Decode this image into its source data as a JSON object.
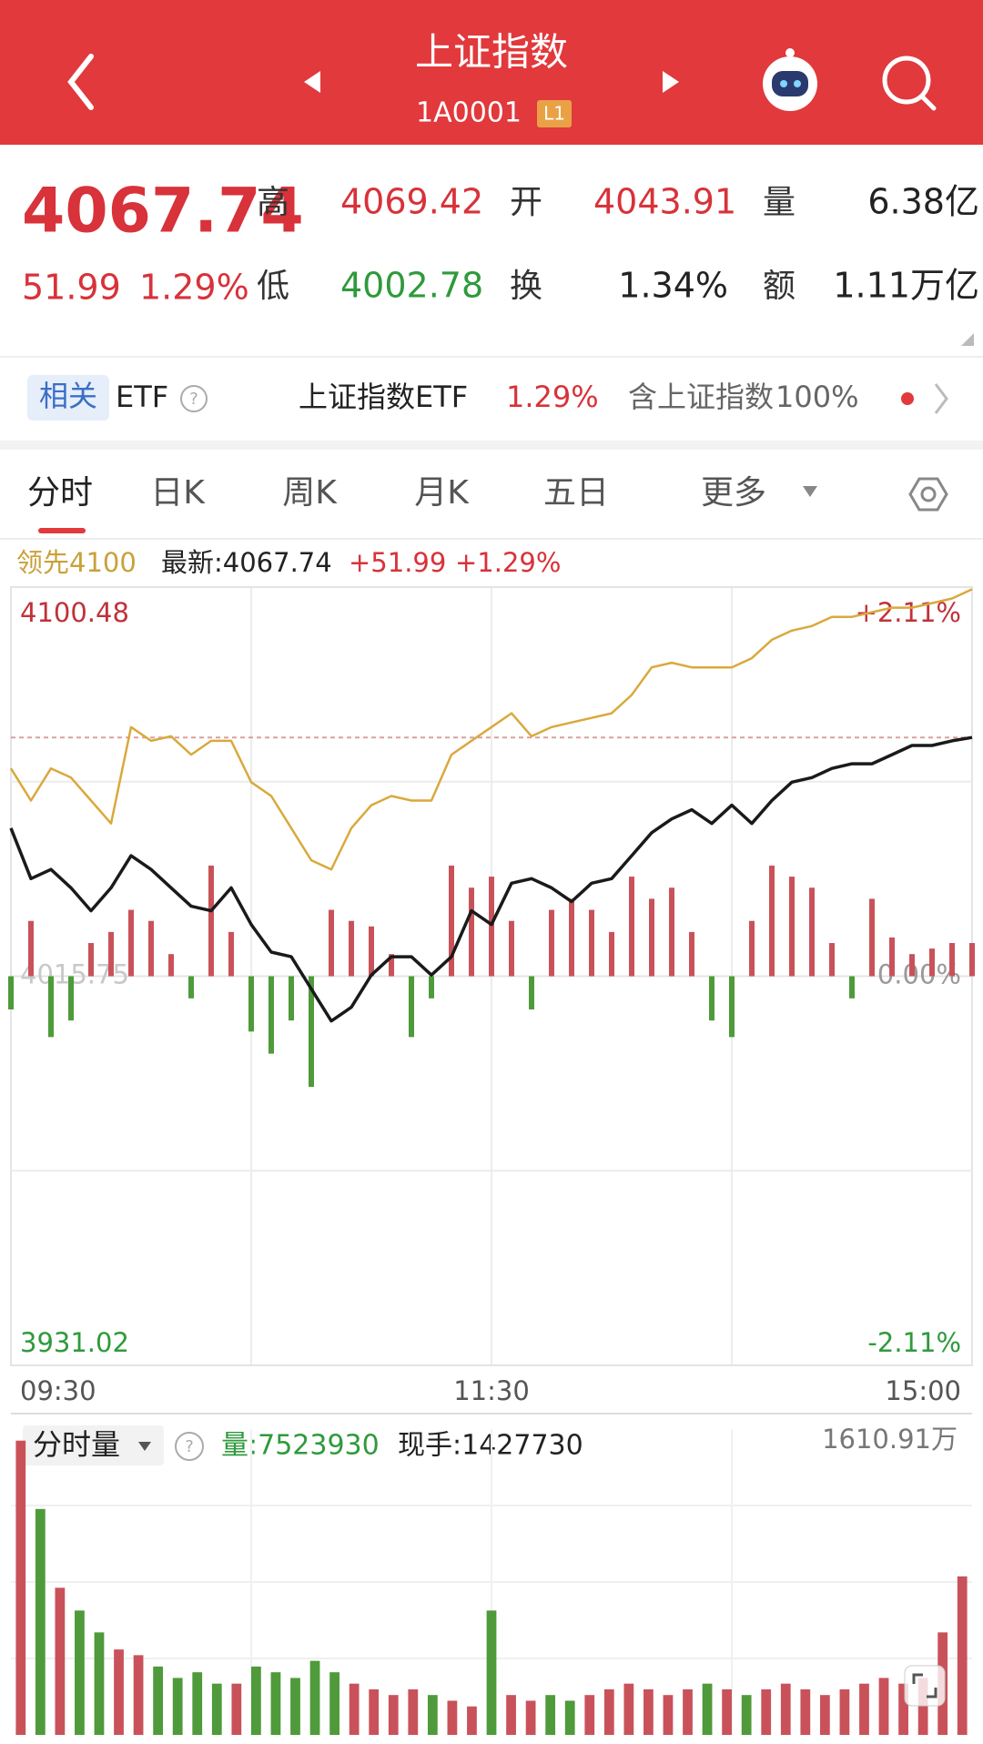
{
  "header": {
    "title": "上证指数",
    "code": "1A0001",
    "badge": "L1"
  },
  "quote": {
    "price": "4067.74",
    "change": "51.99",
    "pct": "1.29%",
    "high_label": "高",
    "high": "4069.42",
    "open_label": "开",
    "open": "4043.91",
    "vol_label": "量",
    "vol": "6.38亿",
    "low_label": "低",
    "low": "4002.78",
    "turnover_label": "换",
    "turnover": "1.34%",
    "amount_label": "额",
    "amount": "1.11万亿"
  },
  "etf": {
    "tag": "相关",
    "etf": "ETF",
    "name": "上证指数ETF",
    "pct": "1.29%",
    "holds_label": "含上证指数",
    "holds": "100%"
  },
  "tabs": [
    "分时",
    "日K",
    "周K",
    "月K",
    "五日",
    "更多"
  ],
  "chart_data": [
    {
      "type": "line",
      "legend_change": "+51.99",
      "legend_pct": "+1.29%",
      "x": [
        0,
        5,
        10,
        15,
        20,
        25,
        30,
        35,
        40,
        45,
        50,
        55,
        60,
        65,
        70,
        75,
        80,
        85,
        90,
        95,
        100,
        105,
        110,
        115,
        120,
        125,
        130,
        135,
        140,
        145,
        150,
        155,
        160,
        165,
        170,
        175,
        180,
        185,
        190,
        195,
        200,
        205,
        210,
        215,
        220,
        225,
        230,
        235,
        240
      ],
      "xlim": [
        0,
        240
      ],
      "xticks": [
        {
          "value": 0,
          "label": "09:30"
        },
        {
          "value": 120,
          "label": "11:30"
        },
        {
          "value": 240,
          "label": "15:00"
        }
      ],
      "ylim": [
        3931.02,
        4100.48
      ],
      "yticks": [
        3931.02,
        4015.75,
        4100.48
      ],
      "y2lim": [
        -2.11,
        2.11
      ],
      "y2ticks": [
        {
          "value": -2.11,
          "label": "-2.11%"
        },
        {
          "value": 0,
          "label": "0.00%"
        },
        {
          "value": 2.11,
          "label": "+2.11%"
        }
      ],
      "series": [
        {
          "name": "领先4100",
          "color": "#d9a93c",
          "values": [
            4061,
            4054,
            4061,
            4059,
            4054,
            4049,
            4070,
            4067,
            4068,
            4064,
            4067,
            4067,
            4058,
            4055,
            4048,
            4041,
            4039,
            4048,
            4053,
            4055,
            4054,
            4054,
            4064,
            4067,
            4070,
            4073,
            4068,
            4070,
            4071,
            4072,
            4073,
            4077,
            4083,
            4084,
            4083,
            4083,
            4083,
            4085,
            4089,
            4091,
            4092,
            4094,
            4094,
            4095,
            4096,
            4096,
            4097,
            4098,
            4100
          ]
        },
        {
          "name": "最新:4067.74",
          "color": "#1a1a1a",
          "values": [
            4048,
            4037,
            4039,
            4035,
            4030,
            4035,
            4042,
            4039,
            4035,
            4031,
            4030,
            4035,
            4027,
            4021,
            4020,
            4013,
            4006,
            4009,
            4016,
            4020,
            4020,
            4016,
            4020,
            4030,
            4027,
            4036,
            4037,
            4035,
            4032,
            4036,
            4037,
            4042,
            4047,
            4050,
            4052,
            4049,
            4053,
            4049,
            4054,
            4058,
            4059,
            4061,
            4062,
            4062,
            4064,
            4066,
            4066,
            4067,
            4067.74
          ]
        }
      ],
      "bars": {
        "axis": "y2",
        "up_color": "#c9525a",
        "down_color": "#4f9a3a",
        "values": [
          -0.18,
          0.3,
          -0.33,
          -0.24,
          0.18,
          0.24,
          0.36,
          0.3,
          0.12,
          -0.12,
          0.6,
          0.24,
          -0.3,
          -0.42,
          -0.24,
          -0.6,
          0.36,
          0.3,
          0.27,
          0.12,
          -0.33,
          -0.12,
          0.6,
          0.48,
          0.54,
          0.3,
          -0.18,
          0.36,
          0.42,
          0.36,
          0.24,
          0.54,
          0.42,
          0.48,
          0.24,
          -0.24,
          -0.33,
          0.3,
          0.6,
          0.54,
          0.48,
          0.18,
          -0.12,
          0.42,
          0.21,
          0.12,
          0.15,
          0.18,
          0.18
        ]
      }
    },
    {
      "type": "bar",
      "label": "分时量",
      "volume": "量:7523930",
      "hand": "现手:1427730",
      "up_color": "#c9525a",
      "down_color": "#4f9a3a",
      "ylim": [
        0,
        1610.91
      ],
      "yticks": [
        {
          "value": 1610.91,
          "label": "1610.91万"
        }
      ],
      "values": [
        1550,
        1190,
        775,
        655,
        540,
        450,
        420,
        360,
        300,
        330,
        270,
        270,
        360,
        330,
        300,
        390,
        330,
        270,
        240,
        210,
        240,
        210,
        180,
        150,
        655,
        210,
        180,
        210,
        180,
        210,
        240,
        270,
        240,
        210,
        240,
        270,
        240,
        210,
        240,
        270,
        240,
        210,
        240,
        270,
        300,
        270,
        300,
        540,
        835
      ]
    }
  ]
}
